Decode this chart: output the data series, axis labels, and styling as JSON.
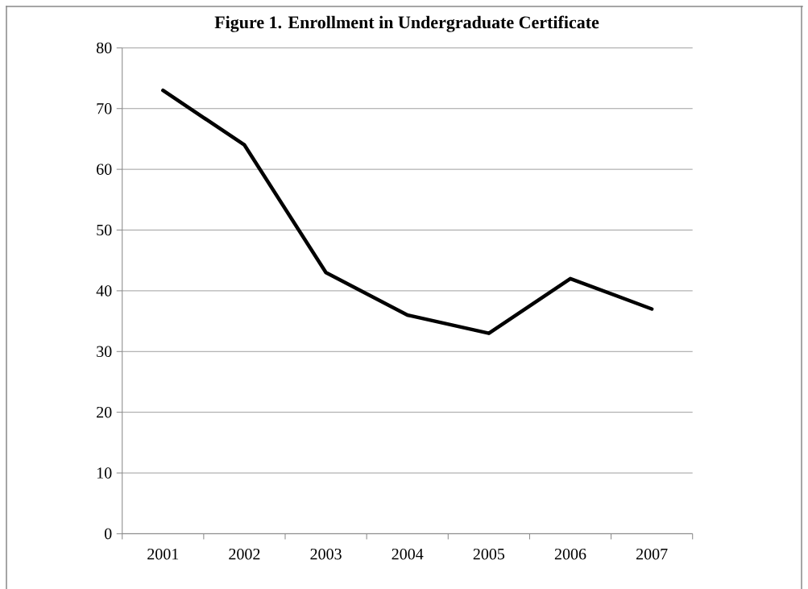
{
  "chart_data": {
    "type": "line",
    "title": "Figure 1. Enrollment in Undergraduate Certificate",
    "categories": [
      "2001",
      "2002",
      "2003",
      "2004",
      "2005",
      "2006",
      "2007"
    ],
    "series": [
      {
        "color": "#000000",
        "values": [
          73,
          64,
          43,
          36,
          33,
          42,
          37
        ]
      }
    ],
    "ylim": [
      0,
      80
    ],
    "yticks": [
      0,
      10,
      20,
      30,
      40,
      50,
      60,
      70,
      80
    ],
    "grid": "y",
    "marker": "none",
    "line_style": "solid"
  }
}
